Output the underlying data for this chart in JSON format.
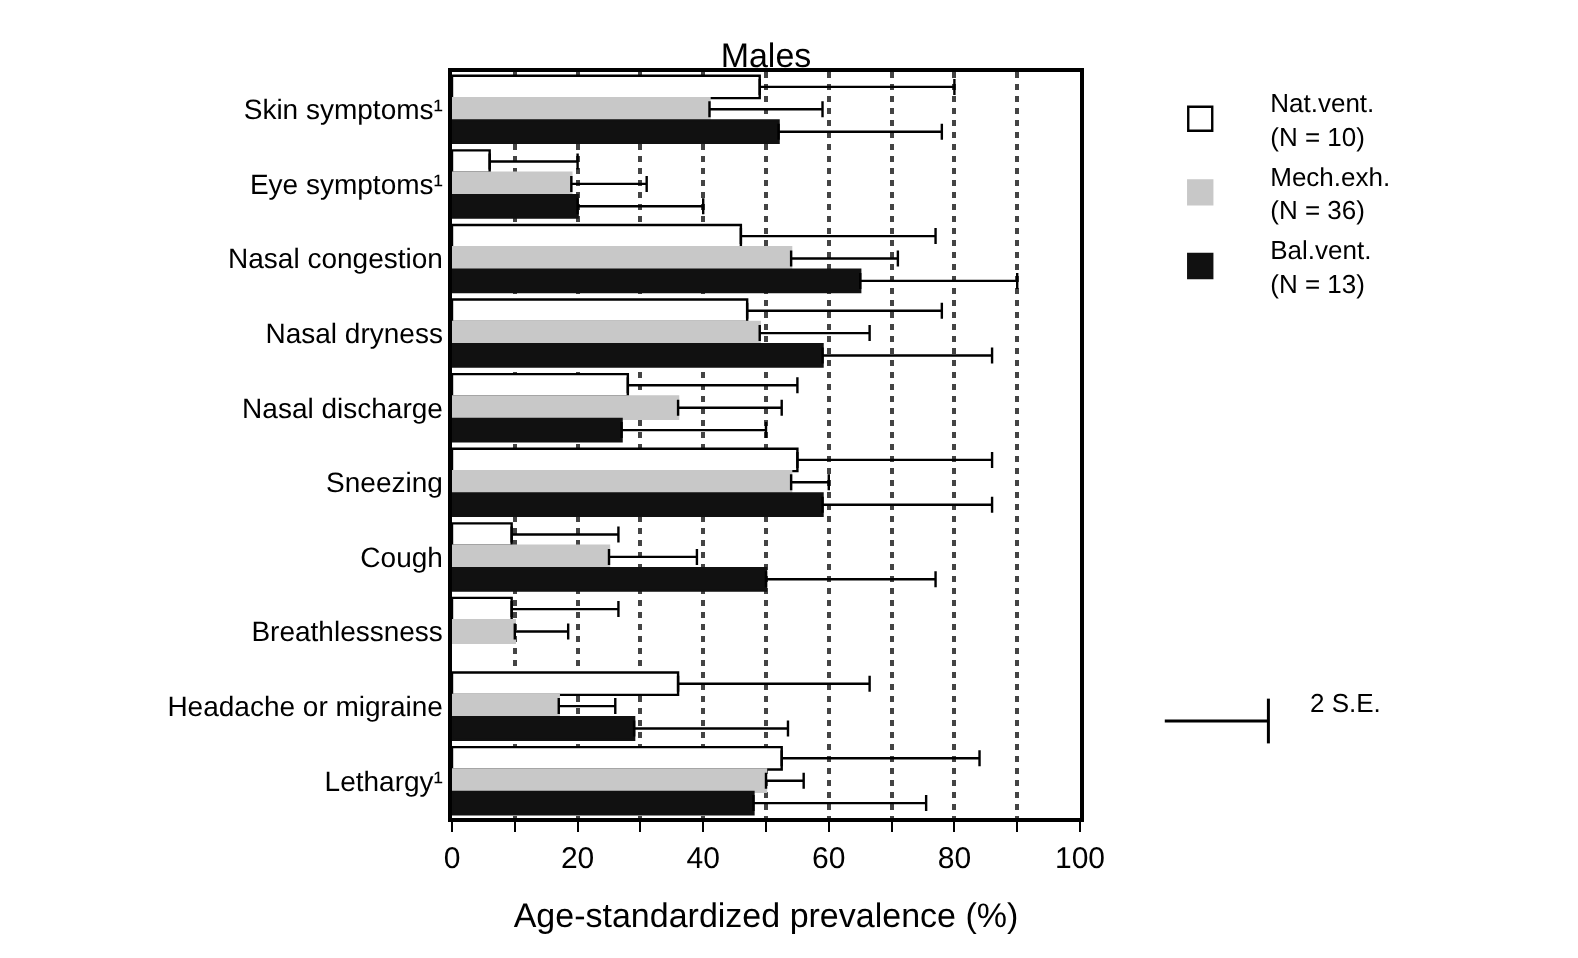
{
  "chart_data": {
    "type": "bar",
    "orientation": "horizontal",
    "title": "Males",
    "xlabel": "Age-standardized prevalence (%)",
    "categories": [
      "Skin symptoms¹",
      "Eye symptoms¹",
      "Nasal congestion",
      "Nasal dryness",
      "Nasal discharge",
      "Sneezing",
      "Cough",
      "Breathlessness",
      "Headache or migraine",
      "Lethargy¹"
    ],
    "series": [
      {
        "name": "Nat.vent.\n(N = 10)",
        "color": "#ffffff",
        "values": [
          49,
          6,
          46,
          47,
          28,
          55,
          9.5,
          9.5,
          36,
          52.5
        ],
        "errors": [
          [
            49,
            80
          ],
          [
            6,
            20
          ],
          [
            46,
            77
          ],
          [
            47,
            78
          ],
          [
            28,
            55
          ],
          [
            55,
            86
          ],
          [
            9.5,
            26.5
          ],
          [
            9.5,
            26.5
          ],
          [
            36,
            66.5
          ],
          [
            52.5,
            84
          ]
        ]
      },
      {
        "name": "Mech.exh.\n(N = 36)",
        "color": "#c8c8c8",
        "values": [
          41,
          19,
          54,
          49,
          36,
          54,
          25,
          10,
          17,
          50
        ],
        "errors": [
          [
            41,
            59
          ],
          [
            19,
            31
          ],
          [
            54,
            71
          ],
          [
            49,
            66.5
          ],
          [
            36,
            52.5
          ],
          [
            54,
            60
          ],
          [
            25,
            39
          ],
          [
            10,
            18.5
          ],
          [
            17,
            26
          ],
          [
            50,
            56
          ]
        ]
      },
      {
        "name": "Bal.vent.\n(N = 13)",
        "color": "#111111",
        "values": [
          52,
          20,
          65,
          59,
          27,
          59,
          50,
          null,
          29,
          48
        ],
        "errors": [
          [
            52,
            78
          ],
          [
            20,
            40
          ],
          [
            65,
            90
          ],
          [
            59,
            86
          ],
          [
            27,
            50
          ],
          [
            59,
            86
          ],
          [
            50,
            77
          ],
          null,
          [
            29,
            53.5
          ],
          [
            48,
            75.5
          ]
        ]
      }
    ],
    "xlim": [
      0,
      100
    ],
    "xticks": [
      0,
      {
        "value": 10,
        "label": null
      },
      20,
      {
        "value": 30,
        "label": null
      },
      40,
      {
        "value": 50,
        "label": null
      },
      60,
      {
        "value": 70,
        "label": null
      },
      80,
      {
        "value": 90,
        "label": null
      },
      100
    ],
    "grid": "x",
    "legend": "right",
    "annotations": [
      "2 S.E."
    ]
  }
}
